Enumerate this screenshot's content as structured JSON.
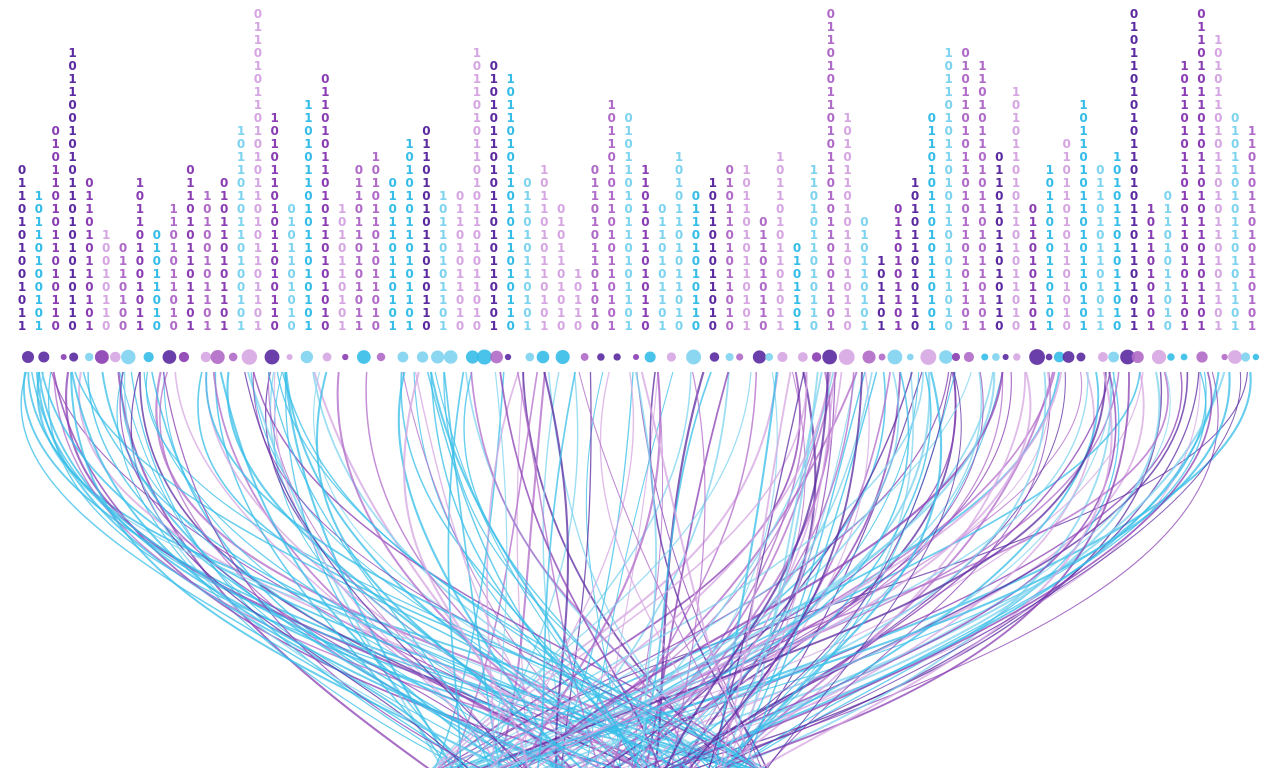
{
  "columns": [
    "0110101001011",
    "10110100101",
    "0101101011010110",
    "1011001010110101010110",
    "011010110101",
    "10010110",
    "0110100",
    "101101001011",
    "01011010",
    "1101011010",
    "0110101101101",
    "10100101101",
    "010110101101",
    "1011010110100101",
    "0110101101010110101101101",
    "10101101011010110",
    "0101101010",
    "110101101011010101",
    "01101011010110101010",
    "1010110101",
    "0110110101011",
    "10101101011010",
    "010110110101",
    "101010110101101",
    "0110101011010110",
    "10110101101",
    "01101011010",
    "1011010110101101011010",
    "010101101011010110101",
    "10110101101011010110",
    "011010110101",
    "1011010110101",
    "0101101010",
    "10110",
    "0110101101010",
    "101101011010110101",
    "01011010110101101",
    "1101011010110",
    "0110101101",
    "10101101011010",
    "01101010110",
    "101101011010",
    "0101101011010",
    "1011010110101",
    "011010110",
    "10110101101011",
    "0101101",
    "1101011010110",
    "0110101101011010110101101",
    "10101101011010110",
    "010110101",
    "101101",
    "0110101101",
    "101011010110",
    "01101011010110101",
    "1011010110101101011010",
    "0101101011010110101101",
    "110101101011010110101",
    "01101011010110",
    "1010110101101011010",
    "0110101101",
    "1011010110101",
    "010110101101010",
    "101101011010110101",
    "0110101101011",
    "10101101011010",
    "0101101010110101101101011",
    "1011010101",
    "01101011010",
    "101101011010110101101",
    "0110101101011010110101101",
    "10101101011010110101101",
    "01011010110101101",
    "1101011010110101"
  ]
}
